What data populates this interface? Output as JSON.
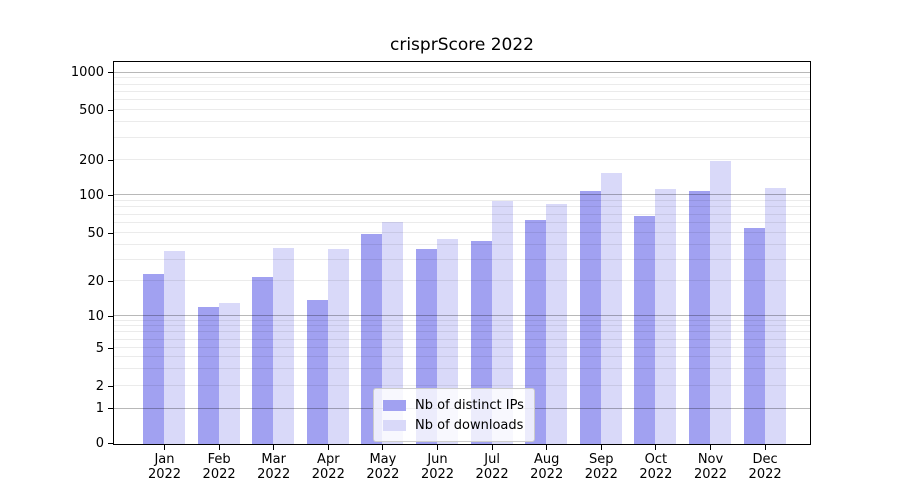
{
  "title": "crisprScore 2022",
  "legend": {
    "items": [
      {
        "label": "Nb of distinct IPs",
        "color": "#a1a1f1"
      },
      {
        "label": "Nb of downloads",
        "color": "#d9d9f9"
      }
    ]
  },
  "colors": {
    "distinct_ips_bar": "#a1a1f1",
    "downloads_bar": "#d9d9f9",
    "major_gridline": "rgba(0,0,0,0.28)",
    "minor_gridline": "rgba(0,0,0,0.08)",
    "axis_frame": "#000000"
  },
  "chart_data": {
    "type": "bar",
    "title": "crisprScore 2022",
    "categories": [
      "Jan 2022",
      "Feb 2022",
      "Mar 2022",
      "Apr 2022",
      "May 2022",
      "Jun 2022",
      "Jul 2022",
      "Aug 2022",
      "Sep 2022",
      "Oct 2022",
      "Nov 2022",
      "Dec 2022"
    ],
    "series": [
      {
        "name": "Nb of distinct IPs",
        "color": "#a1a1f1",
        "values": [
          23,
          12,
          22,
          14,
          50,
          37,
          43,
          64,
          110,
          69,
          110,
          55
        ]
      },
      {
        "name": "Nb of downloads",
        "color": "#d9d9f9",
        "values": [
          36,
          13,
          38,
          37,
          62,
          45,
          91,
          85,
          155,
          113,
          200,
          115
        ]
      }
    ],
    "xlabel": "",
    "ylabel": "",
    "y_axis": {
      "scale": "log-like (symlog, linear below 1)",
      "tick_values": [
        0,
        1,
        2,
        5,
        10,
        20,
        50,
        100,
        200,
        500,
        1000
      ],
      "tick_labels": [
        "0",
        "1",
        "2",
        "5",
        "10",
        "20",
        "50",
        "100",
        "200",
        "500",
        "1000"
      ],
      "major_gridline_values": [
        1,
        10,
        100,
        1000
      ],
      "minor_gridline_values": [
        2,
        3,
        4,
        5,
        6,
        7,
        8,
        9,
        20,
        30,
        40,
        50,
        60,
        70,
        80,
        90,
        200,
        300,
        400,
        500,
        600,
        700,
        800,
        900
      ],
      "range": [
        0,
        1300
      ]
    },
    "grid": "horizontal major + minor gridlines drawn over bars",
    "legend_position": "inside plot, lower center-left"
  }
}
